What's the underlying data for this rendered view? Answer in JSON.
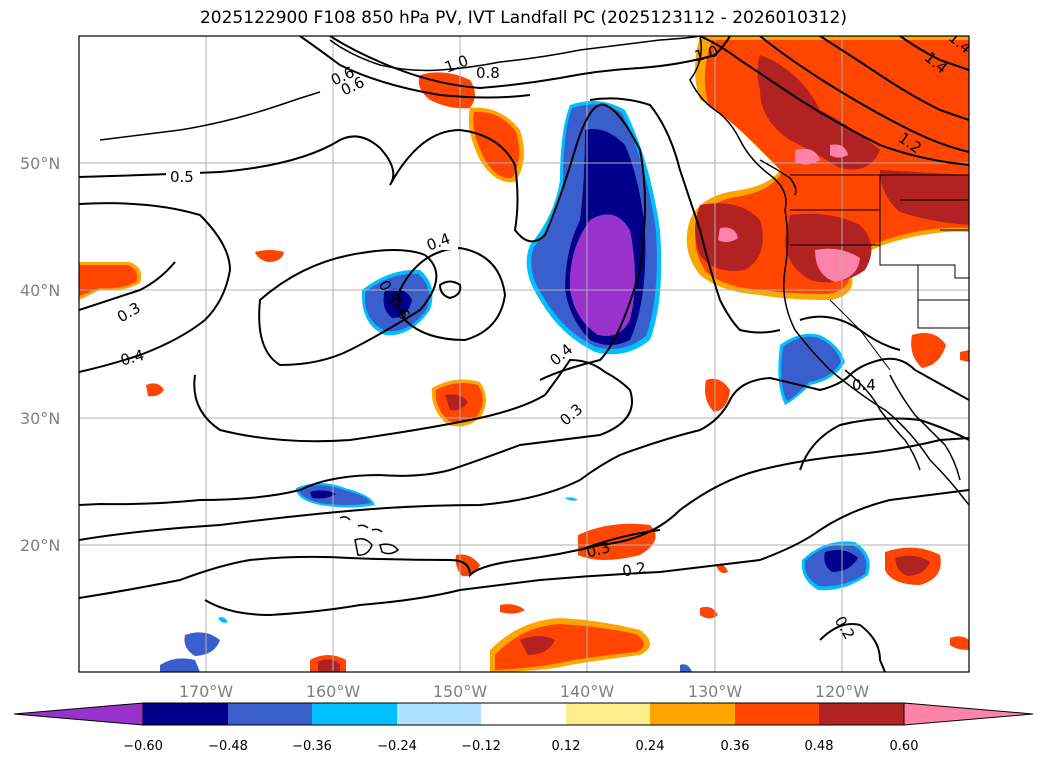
{
  "title": "2025122900 F108 850 hPa PV, IVT Landfall PC (2025123112 - 2026010312)",
  "map": {
    "projection": "cylindrical",
    "lon_range": [
      -180,
      -110
    ],
    "lat_range": [
      10,
      60
    ],
    "lat_ticks": [
      {
        "value": 20,
        "label": "20°N"
      },
      {
        "value": 30,
        "label": "30°N"
      },
      {
        "value": 40,
        "label": "40°N"
      },
      {
        "value": 50,
        "label": "50°N"
      }
    ],
    "lon_ticks": [
      {
        "value": -170,
        "label": "170°W"
      },
      {
        "value": -160,
        "label": "160°W"
      },
      {
        "value": -150,
        "label": "150°W"
      },
      {
        "value": -140,
        "label": "140°W"
      },
      {
        "value": -130,
        "label": "130°W"
      },
      {
        "value": -120,
        "label": "120°W"
      }
    ],
    "grid": true,
    "gridline_color": "#b0b0b0"
  },
  "colorbar": {
    "orientation": "horizontal",
    "extend": "both",
    "colors": [
      "#9932cc",
      "#00008b",
      "#3a5fcd",
      "#00bfff",
      "#b0e2ff",
      "#ffffff",
      "#ffec8b",
      "#ffa500",
      "#ff4500",
      "#b22222",
      "#ff82ab"
    ],
    "ticks": [
      "−0.60",
      "−0.48",
      "−0.36",
      "−0.24",
      "−0.12",
      "0.12",
      "0.24",
      "0.36",
      "0.48",
      "0.60"
    ]
  },
  "contour_labels": [
    "0.2",
    "0.3",
    "0.3",
    "0.3",
    "0.3",
    "0.4",
    "0.4",
    "0.4",
    "0.4",
    "0.5",
    "0.6",
    "0.8",
    "1.0",
    "1.0",
    "1.2",
    "1.4",
    "0.2",
    "0.6",
    "0.6",
    "1.4"
  ],
  "fill_colors": {
    "pos1": "#ffec8b",
    "pos2": "#ffa500",
    "pos3": "#ff4500",
    "pos4": "#b22222",
    "pos5": "#ff82ab",
    "neg1": "#b0e2ff",
    "neg2": "#00bfff",
    "neg3": "#3a5fcd",
    "neg4": "#00008b",
    "neg5": "#9932cc"
  }
}
